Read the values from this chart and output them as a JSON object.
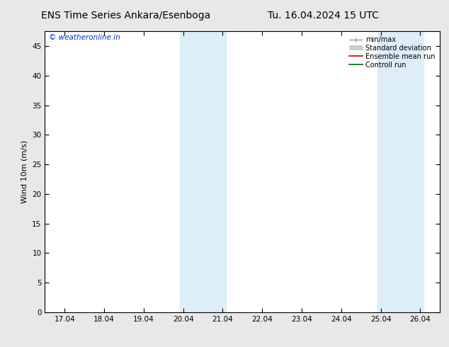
{
  "title_left": "ENS Time Series Ankara/Esenboga",
  "title_right": "Tu. 16.04.2024 15 UTC",
  "ylabel": "Wind 10m (m/s)",
  "watermark": "© weatheronline.in",
  "x_labels": [
    "17.04",
    "18.04",
    "19.04",
    "20.04",
    "21.04",
    "22.04",
    "23.04",
    "24.04",
    "25.04",
    "26.04"
  ],
  "x_ticks": [
    0,
    1,
    2,
    3,
    4,
    5,
    6,
    7,
    8,
    9
  ],
  "xlim": [
    -0.5,
    9.5
  ],
  "ylim": [
    0,
    47.5
  ],
  "yticks": [
    0,
    5,
    10,
    15,
    20,
    25,
    30,
    35,
    40,
    45
  ],
  "shaded_bands": [
    {
      "x_start": 2.92,
      "x_end": 3.5
    },
    {
      "x_start": 3.5,
      "x_end": 4.08
    },
    {
      "x_start": 7.92,
      "x_end": 8.5
    },
    {
      "x_start": 8.5,
      "x_end": 9.08
    }
  ],
  "shade_color": "#ddeef8",
  "background_color": "#ffffff",
  "fig_bg_color": "#e8e8e8",
  "legend_items": [
    {
      "label": "min/max",
      "color": "#999999",
      "lw": 1.0
    },
    {
      "label": "Standard deviation",
      "color": "#cccccc",
      "lw": 5
    },
    {
      "label": "Ensemble mean run",
      "color": "#cc0000",
      "lw": 1.2
    },
    {
      "label": "Controll run",
      "color": "#006600",
      "lw": 1.2
    }
  ],
  "title_fontsize": 10,
  "axis_fontsize": 8,
  "tick_fontsize": 7.5,
  "watermark_color": "#0033cc",
  "watermark_fontsize": 7.5
}
